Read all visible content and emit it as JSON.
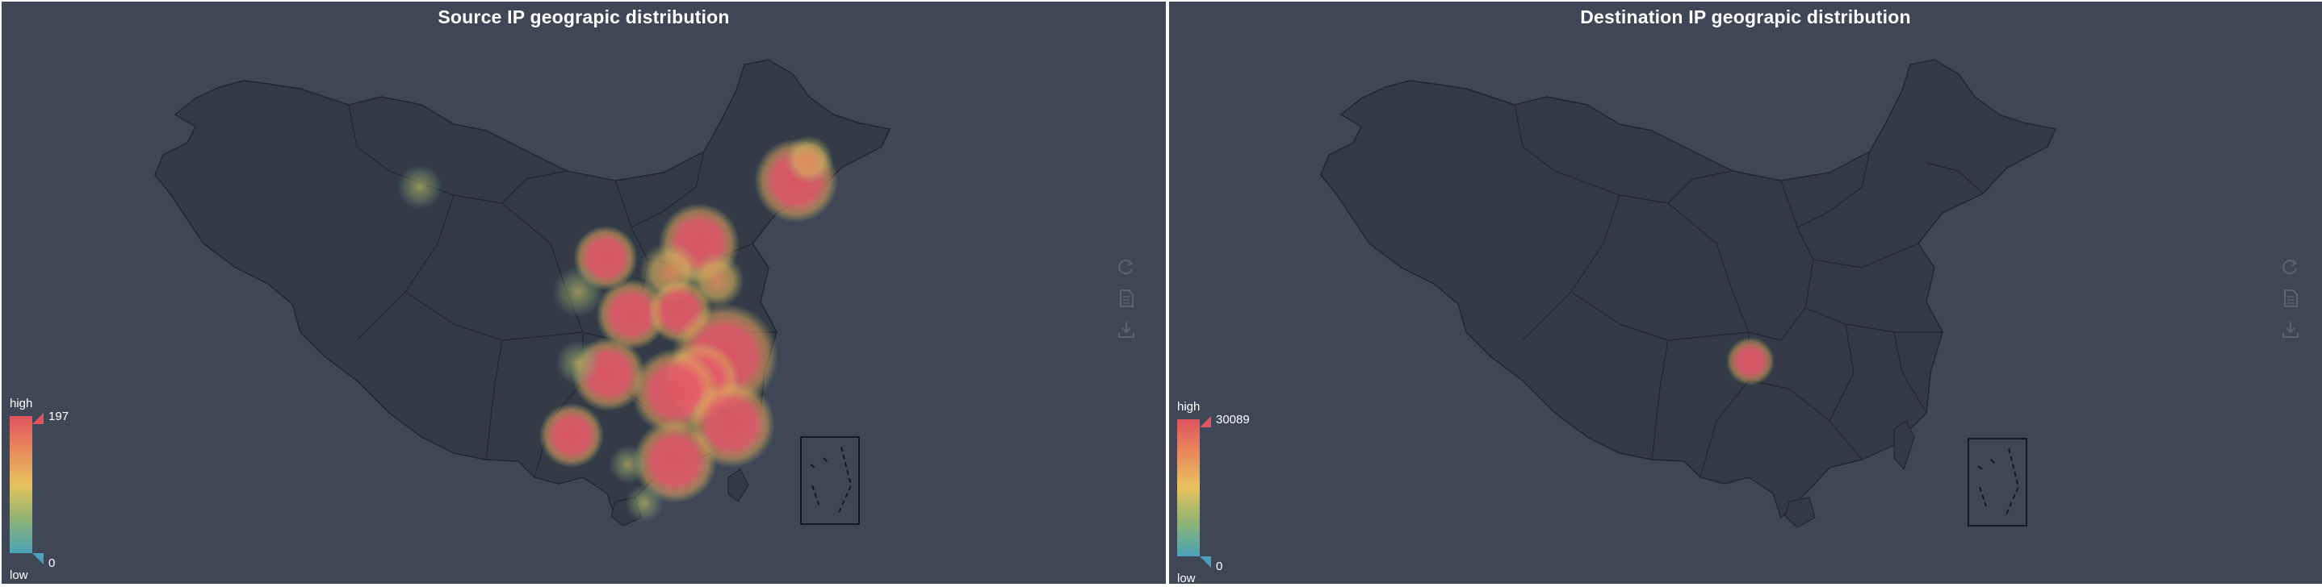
{
  "source_panel": {
    "title": "Source IP geograpic distribution",
    "legend": {
      "high_label": "high",
      "low_label": "low",
      "max": "197",
      "min": "0"
    },
    "heat_color_high": "#e0535f",
    "heat_color_mid": "#e7c25d",
    "heat_color_low": "#4aa2b8",
    "toolbox_icons": [
      "restore-icon",
      "data-view-icon",
      "save-image-icon"
    ]
  },
  "dest_panel": {
    "title": "Destination IP geograpic distribution",
    "legend": {
      "high_label": "high",
      "low_label": "low",
      "max": "30089",
      "min": "0"
    },
    "toolbox_icons": [
      "restore-icon",
      "data-view-icon",
      "save-image-icon"
    ]
  },
  "colors": {
    "background": "#3f4756",
    "land": "#343b47",
    "border": "#22272f",
    "text": "#ffffff"
  }
}
